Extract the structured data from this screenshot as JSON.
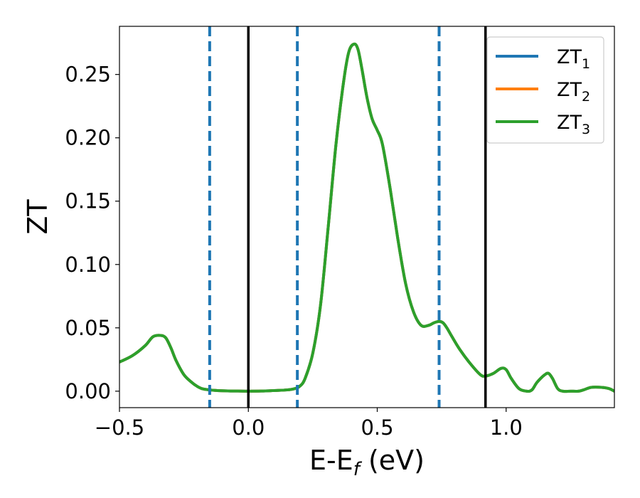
{
  "chart_data": {
    "type": "line",
    "xlabel": {
      "main": "E-E",
      "sub": "f",
      "suffix": " (eV)"
    },
    "ylabel": "ZT",
    "xlim": [
      -0.5,
      1.42
    ],
    "ylim": [
      -0.013,
      0.288
    ],
    "x_ticks": [
      -0.5,
      0.0,
      0.5,
      1.0
    ],
    "x_tick_labels": [
      "−0.5",
      "0.0",
      "0.5",
      "1.0"
    ],
    "y_ticks": [
      0.0,
      0.05,
      0.1,
      0.15,
      0.2,
      0.25
    ],
    "y_tick_labels": [
      "0.00",
      "0.05",
      "0.10",
      "0.15",
      "0.20",
      "0.25"
    ],
    "legend_position": "top-right",
    "series": [
      {
        "name": "ZT",
        "sub": "1",
        "color": "#1f77b4",
        "x": [
          -0.5,
          -0.45,
          -0.4,
          -0.37,
          -0.34,
          -0.32,
          -0.3,
          -0.28,
          -0.25,
          -0.22,
          -0.2,
          -0.18,
          -0.15,
          -0.12,
          -0.08,
          -0.04,
          0.0,
          0.05,
          0.1,
          0.15,
          0.18,
          0.2,
          0.22,
          0.25,
          0.28,
          0.31,
          0.34,
          0.37,
          0.39,
          0.41,
          0.425,
          0.44,
          0.46,
          0.48,
          0.5,
          0.52,
          0.55,
          0.58,
          0.61,
          0.64,
          0.67,
          0.7,
          0.72,
          0.74,
          0.755,
          0.77,
          0.79,
          0.82,
          0.86,
          0.9,
          0.92,
          0.95,
          0.98,
          1.0,
          1.02,
          1.05,
          1.08,
          1.1,
          1.12,
          1.15,
          1.165,
          1.18,
          1.2,
          1.22,
          1.25,
          1.28,
          1.3,
          1.33,
          1.37,
          1.4,
          1.42
        ],
        "y": [
          0.023,
          0.028,
          0.036,
          0.043,
          0.044,
          0.042,
          0.034,
          0.024,
          0.013,
          0.007,
          0.004,
          0.002,
          0.001,
          0.0005,
          0.0002,
          0.0001,
          0.0,
          0.0001,
          0.0005,
          0.001,
          0.002,
          0.004,
          0.01,
          0.03,
          0.068,
          0.13,
          0.195,
          0.245,
          0.268,
          0.274,
          0.27,
          0.255,
          0.232,
          0.215,
          0.206,
          0.195,
          0.16,
          0.12,
          0.085,
          0.063,
          0.052,
          0.052,
          0.054,
          0.055,
          0.054,
          0.05,
          0.043,
          0.033,
          0.022,
          0.013,
          0.012,
          0.014,
          0.018,
          0.017,
          0.01,
          0.002,
          0.0,
          0.001,
          0.007,
          0.013,
          0.014,
          0.01,
          0.002,
          0.0,
          0.0,
          0.0,
          0.001,
          0.003,
          0.003,
          0.002,
          0.0
        ]
      },
      {
        "name": "ZT",
        "sub": "2",
        "color": "#ff7f0e",
        "x": [
          -0.5,
          -0.45,
          -0.4,
          -0.37,
          -0.34,
          -0.32,
          -0.3,
          -0.28,
          -0.25,
          -0.22,
          -0.2,
          -0.18,
          -0.15,
          -0.12,
          -0.08,
          -0.04,
          0.0,
          0.05,
          0.1,
          0.15,
          0.18,
          0.2,
          0.22,
          0.25,
          0.28,
          0.31,
          0.34,
          0.37,
          0.39,
          0.41,
          0.425,
          0.44,
          0.46,
          0.48,
          0.5,
          0.52,
          0.55,
          0.58,
          0.61,
          0.64,
          0.67,
          0.7,
          0.72,
          0.74,
          0.755,
          0.77,
          0.79,
          0.82,
          0.86,
          0.9,
          0.92,
          0.95,
          0.98,
          1.0,
          1.02,
          1.05,
          1.08,
          1.1,
          1.12,
          1.15,
          1.165,
          1.18,
          1.2,
          1.22,
          1.25,
          1.28,
          1.3,
          1.33,
          1.37,
          1.4,
          1.42
        ],
        "y": [
          0.023,
          0.028,
          0.036,
          0.043,
          0.044,
          0.042,
          0.034,
          0.024,
          0.013,
          0.007,
          0.004,
          0.002,
          0.001,
          0.0005,
          0.0002,
          0.0001,
          0.0,
          0.0001,
          0.0005,
          0.001,
          0.002,
          0.004,
          0.01,
          0.03,
          0.068,
          0.13,
          0.195,
          0.245,
          0.268,
          0.274,
          0.27,
          0.255,
          0.232,
          0.215,
          0.206,
          0.195,
          0.16,
          0.12,
          0.085,
          0.063,
          0.052,
          0.052,
          0.054,
          0.055,
          0.054,
          0.05,
          0.043,
          0.033,
          0.022,
          0.013,
          0.012,
          0.014,
          0.018,
          0.017,
          0.01,
          0.002,
          0.0,
          0.001,
          0.007,
          0.013,
          0.014,
          0.01,
          0.002,
          0.0,
          0.0,
          0.0,
          0.001,
          0.003,
          0.003,
          0.002,
          0.0
        ]
      },
      {
        "name": "ZT",
        "sub": "3",
        "color": "#2ca02c",
        "x": [
          -0.5,
          -0.45,
          -0.4,
          -0.37,
          -0.34,
          -0.32,
          -0.3,
          -0.28,
          -0.25,
          -0.22,
          -0.2,
          -0.18,
          -0.15,
          -0.12,
          -0.08,
          -0.04,
          0.0,
          0.05,
          0.1,
          0.15,
          0.18,
          0.2,
          0.22,
          0.25,
          0.28,
          0.31,
          0.34,
          0.37,
          0.39,
          0.41,
          0.425,
          0.44,
          0.46,
          0.48,
          0.5,
          0.52,
          0.55,
          0.58,
          0.61,
          0.64,
          0.67,
          0.7,
          0.72,
          0.74,
          0.755,
          0.77,
          0.79,
          0.82,
          0.86,
          0.9,
          0.92,
          0.95,
          0.98,
          1.0,
          1.02,
          1.05,
          1.08,
          1.1,
          1.12,
          1.15,
          1.165,
          1.18,
          1.2,
          1.22,
          1.25,
          1.28,
          1.3,
          1.33,
          1.37,
          1.4,
          1.42
        ],
        "y": [
          0.023,
          0.028,
          0.036,
          0.043,
          0.044,
          0.042,
          0.034,
          0.024,
          0.013,
          0.007,
          0.004,
          0.002,
          0.001,
          0.0005,
          0.0002,
          0.0001,
          0.0,
          0.0001,
          0.0005,
          0.001,
          0.002,
          0.004,
          0.01,
          0.03,
          0.068,
          0.13,
          0.195,
          0.245,
          0.268,
          0.274,
          0.27,
          0.255,
          0.232,
          0.215,
          0.206,
          0.195,
          0.16,
          0.12,
          0.085,
          0.063,
          0.052,
          0.052,
          0.054,
          0.055,
          0.054,
          0.05,
          0.043,
          0.033,
          0.022,
          0.013,
          0.012,
          0.014,
          0.018,
          0.017,
          0.01,
          0.002,
          0.0,
          0.001,
          0.007,
          0.013,
          0.014,
          0.01,
          0.002,
          0.0,
          0.0,
          0.0,
          0.001,
          0.003,
          0.003,
          0.002,
          0.0
        ]
      }
    ],
    "vertical_lines": [
      {
        "x": -0.15,
        "style": "dashed",
        "color": "#1f77b4"
      },
      {
        "x": 0.0,
        "style": "solid",
        "color": "#000000"
      },
      {
        "x": 0.19,
        "style": "dashed",
        "color": "#1f77b4"
      },
      {
        "x": 0.74,
        "style": "dashed",
        "color": "#1f77b4"
      },
      {
        "x": 0.92,
        "style": "solid",
        "color": "#000000"
      }
    ]
  }
}
